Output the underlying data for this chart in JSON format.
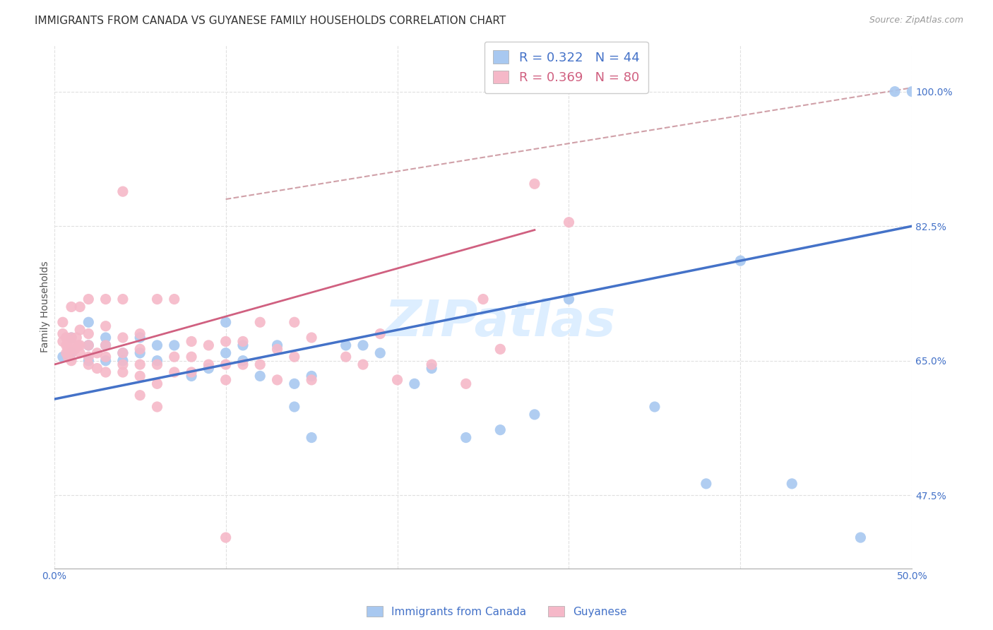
{
  "title": "IMMIGRANTS FROM CANADA VS GUYANESE FAMILY HOUSEHOLDS CORRELATION CHART",
  "source": "Source: ZipAtlas.com",
  "ylabel": "Family Households",
  "ytick_labels": [
    "47.5%",
    "65.0%",
    "82.5%",
    "100.0%"
  ],
  "ytick_values": [
    0.475,
    0.65,
    0.825,
    1.0
  ],
  "xlim": [
    0.0,
    0.5
  ],
  "ylim": [
    0.38,
    1.06
  ],
  "legend_blue_label": "R = 0.322   N = 44",
  "legend_pink_label": "R = 0.369   N = 80",
  "blue_color": "#a8c8f0",
  "pink_color": "#f5b8c8",
  "blue_line_color": "#4472c8",
  "pink_line_color": "#d06080",
  "dashed_line_color": "#d0a0a8",
  "watermark_text": "ZIPatlas",
  "watermark_color": "#ddeeff",
  "blue_scatter_x": [
    0.005,
    0.01,
    0.01,
    0.02,
    0.02,
    0.02,
    0.03,
    0.03,
    0.03,
    0.04,
    0.04,
    0.05,
    0.05,
    0.06,
    0.06,
    0.07,
    0.08,
    0.09,
    0.1,
    0.1,
    0.11,
    0.11,
    0.12,
    0.13,
    0.14,
    0.14,
    0.15,
    0.15,
    0.17,
    0.18,
    0.19,
    0.21,
    0.22,
    0.24,
    0.26,
    0.28,
    0.3,
    0.35,
    0.38,
    0.4,
    0.43,
    0.47,
    0.49,
    0.5
  ],
  "blue_scatter_y": [
    0.655,
    0.66,
    0.68,
    0.67,
    0.65,
    0.7,
    0.67,
    0.65,
    0.68,
    0.65,
    0.66,
    0.68,
    0.66,
    0.65,
    0.67,
    0.67,
    0.63,
    0.64,
    0.66,
    0.7,
    0.67,
    0.65,
    0.63,
    0.67,
    0.59,
    0.62,
    0.55,
    0.63,
    0.67,
    0.67,
    0.66,
    0.62,
    0.64,
    0.55,
    0.56,
    0.58,
    0.73,
    0.59,
    0.49,
    0.78,
    0.49,
    0.42,
    1.0,
    1.0
  ],
  "pink_scatter_x": [
    0.005,
    0.005,
    0.005,
    0.007,
    0.007,
    0.007,
    0.008,
    0.008,
    0.008,
    0.01,
    0.01,
    0.01,
    0.01,
    0.01,
    0.012,
    0.013,
    0.014,
    0.015,
    0.015,
    0.015,
    0.015,
    0.02,
    0.02,
    0.02,
    0.02,
    0.02,
    0.025,
    0.025,
    0.03,
    0.03,
    0.03,
    0.03,
    0.03,
    0.04,
    0.04,
    0.04,
    0.04,
    0.04,
    0.05,
    0.05,
    0.05,
    0.05,
    0.05,
    0.06,
    0.06,
    0.06,
    0.06,
    0.07,
    0.07,
    0.07,
    0.08,
    0.08,
    0.08,
    0.09,
    0.09,
    0.1,
    0.1,
    0.1,
    0.11,
    0.11,
    0.12,
    0.12,
    0.13,
    0.13,
    0.14,
    0.14,
    0.15,
    0.15,
    0.17,
    0.18,
    0.19,
    0.2,
    0.22,
    0.24,
    0.25,
    0.26,
    0.28,
    0.3,
    0.1,
    0.04
  ],
  "pink_scatter_y": [
    0.675,
    0.685,
    0.7,
    0.66,
    0.67,
    0.68,
    0.655,
    0.665,
    0.675,
    0.65,
    0.66,
    0.67,
    0.68,
    0.72,
    0.665,
    0.68,
    0.67,
    0.66,
    0.67,
    0.69,
    0.72,
    0.645,
    0.655,
    0.67,
    0.685,
    0.73,
    0.64,
    0.66,
    0.635,
    0.655,
    0.67,
    0.695,
    0.73,
    0.635,
    0.645,
    0.66,
    0.68,
    0.73,
    0.605,
    0.63,
    0.645,
    0.665,
    0.685,
    0.59,
    0.62,
    0.645,
    0.73,
    0.635,
    0.655,
    0.73,
    0.635,
    0.655,
    0.675,
    0.645,
    0.67,
    0.625,
    0.645,
    0.675,
    0.645,
    0.675,
    0.645,
    0.7,
    0.625,
    0.665,
    0.655,
    0.7,
    0.625,
    0.68,
    0.655,
    0.645,
    0.685,
    0.625,
    0.645,
    0.62,
    0.73,
    0.665,
    0.88,
    0.83,
    0.42,
    0.87
  ],
  "blue_line_x": [
    0.0,
    0.5
  ],
  "blue_line_y": [
    0.6,
    0.825
  ],
  "pink_line_x": [
    0.0,
    0.28
  ],
  "pink_line_y": [
    0.645,
    0.82
  ],
  "dashed_line_x": [
    0.1,
    0.5
  ],
  "dashed_line_y": [
    0.86,
    1.005
  ],
  "grid_color": "#e0e0e0",
  "background_color": "#ffffff",
  "title_fontsize": 11,
  "axis_label_fontsize": 10,
  "tick_fontsize": 10,
  "legend_fontsize": 13,
  "watermark_fontsize": 52
}
